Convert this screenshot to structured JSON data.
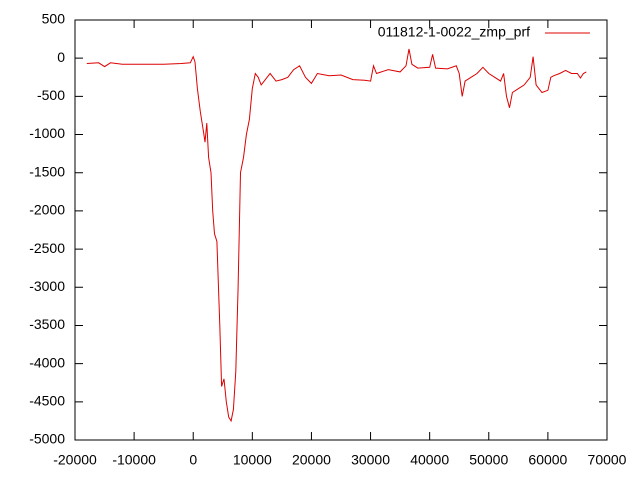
{
  "chart_data": {
    "type": "line",
    "x": [
      -18000,
      -16000,
      -15000,
      -14000,
      -12000,
      -10000,
      -5000,
      -2000,
      -500,
      0,
      300,
      700,
      1200,
      1800,
      2000,
      2300,
      2600,
      3000,
      3300,
      3600,
      4000,
      4500,
      4800,
      5200,
      5600,
      6000,
      6400,
      6800,
      7200,
      7600,
      8000,
      8500,
      9000,
      9500,
      10000,
      10500,
      11000,
      11500,
      12000,
      13000,
      14000,
      15000,
      16000,
      17000,
      18000,
      19000,
      20000,
      21000,
      23000,
      25000,
      27000,
      29000,
      30000,
      30500,
      31000,
      33000,
      35000,
      36000,
      36500,
      37000,
      38000,
      40000,
      40500,
      41000,
      43000,
      44500,
      45000,
      45500,
      46000,
      47000,
      48000,
      49000,
      50000,
      51000,
      52000,
      52500,
      53000,
      53500,
      54000,
      55000,
      56000,
      57000,
      57500,
      58000,
      58500,
      59000,
      60000,
      60500,
      61000,
      62000,
      63000,
      64000,
      65000,
      65500,
      66000,
      66500
    ],
    "series": [
      {
        "name": "011812-1-0022_zmp_prf",
        "color": "#dd0000",
        "values": [
          -70,
          -60,
          -110,
          -60,
          -80,
          -80,
          -80,
          -70,
          -60,
          20,
          -50,
          -400,
          -700,
          -1000,
          -1100,
          -850,
          -1300,
          -1500,
          -2000,
          -2300,
          -2400,
          -3500,
          -4300,
          -4200,
          -4500,
          -4700,
          -4750,
          -4600,
          -4100,
          -3000,
          -1500,
          -1300,
          -1000,
          -800,
          -400,
          -200,
          -250,
          -350,
          -300,
          -200,
          -300,
          -280,
          -250,
          -150,
          -100,
          -250,
          -330,
          -200,
          -230,
          -220,
          -280,
          -290,
          -300,
          -100,
          -200,
          -150,
          -180,
          -100,
          120,
          -80,
          -130,
          -120,
          50,
          -130,
          -140,
          -100,
          -200,
          -500,
          -300,
          -250,
          -200,
          -120,
          -200,
          -250,
          -300,
          -200,
          -500,
          -650,
          -450,
          -400,
          -350,
          -250,
          20,
          -350,
          -400,
          -450,
          -420,
          -250,
          -230,
          -200,
          -160,
          -200,
          -200,
          -260,
          -200,
          -180
        ]
      }
    ],
    "xlim": [
      -20000,
      70000
    ],
    "xticks": [
      -20000,
      -10000,
      0,
      10000,
      20000,
      30000,
      40000,
      50000,
      60000,
      70000
    ],
    "ylim": [
      -5000,
      500
    ],
    "yticks": [
      -5000,
      -4500,
      -4000,
      -3500,
      -3000,
      -2500,
      -2000,
      -1500,
      -1000,
      -500,
      0,
      500
    ],
    "legend": "top-right"
  }
}
